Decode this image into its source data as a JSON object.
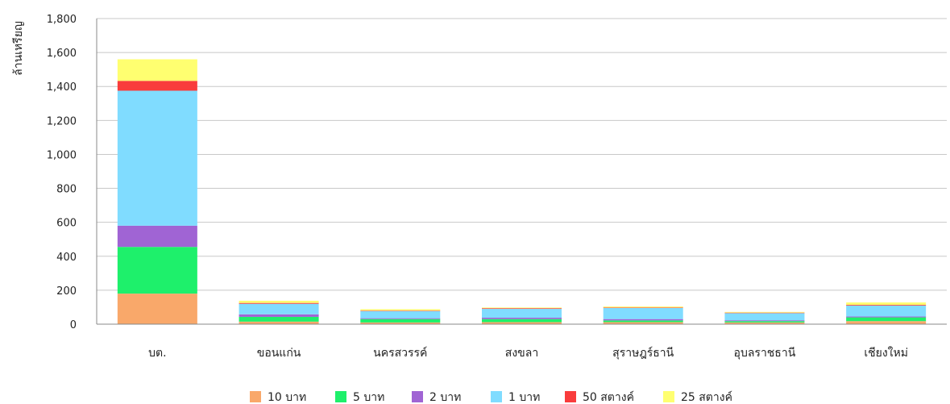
{
  "chart_data": {
    "type": "bar",
    "stacked": true,
    "ylabel": "ล้านเหรียญ",
    "xlabel": "",
    "ylim": [
      0,
      1800
    ],
    "yticks": [
      0,
      200,
      400,
      600,
      800,
      1000,
      1200,
      1400,
      1600,
      1800
    ],
    "ytick_labels": [
      "0",
      "200",
      "400",
      "600",
      "800",
      "1,000",
      "1,200",
      "1,400",
      "1,600",
      "1,800"
    ],
    "grid": true,
    "legend_position": "bottom",
    "categories": [
      "บต.",
      "ขอนแก่น",
      "นครสวรรค์",
      "สงขลา",
      "สุราษฎร์ธานี",
      "อุบลราชธานี",
      "เชียงใหม่"
    ],
    "series": [
      {
        "name": "10 บาท",
        "color": "#f9a86a",
        "values": [
          180,
          15,
          10,
          12,
          12,
          10,
          18
        ]
      },
      {
        "name": "5 บาท",
        "color": "#1ef06b",
        "values": [
          275,
          28,
          20,
          18,
          10,
          8,
          22
        ]
      },
      {
        "name": "2 บาท",
        "color": "#a064d4",
        "values": [
          125,
          15,
          5,
          8,
          8,
          5,
          5
        ]
      },
      {
        "name": "1 บาท",
        "color": "#80dcff",
        "values": [
          795,
          62,
          42,
          52,
          65,
          42,
          65
        ]
      },
      {
        "name": "50 สตางค์",
        "color": "#f93c3c",
        "values": [
          58,
          5,
          3,
          4,
          3,
          3,
          4
        ]
      },
      {
        "name": "25 สตางค์",
        "color": "#ffff70",
        "values": [
          127,
          13,
          8,
          4,
          6,
          4,
          14
        ]
      }
    ]
  }
}
